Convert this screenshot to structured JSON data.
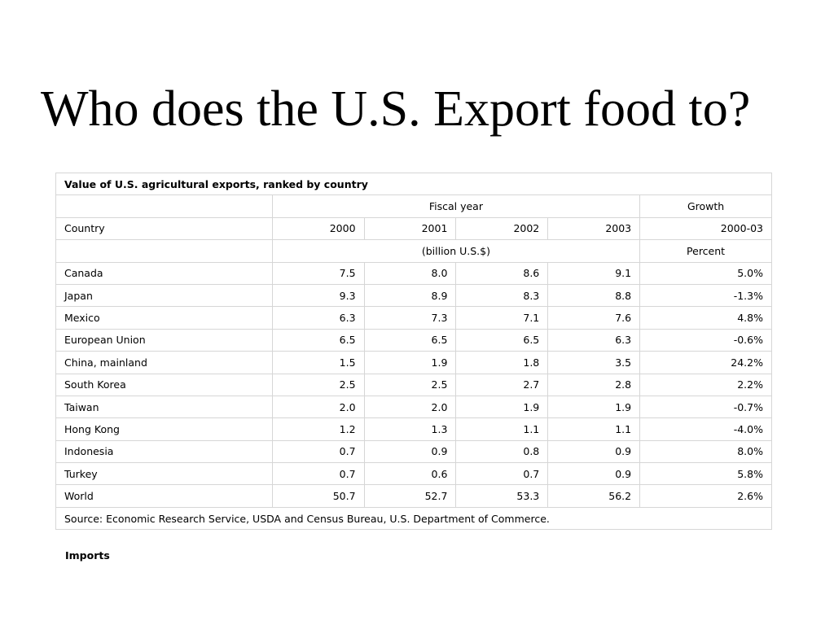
{
  "slide": {
    "title": "Who does the U.S. Export food to?"
  },
  "table": {
    "caption": "Value of U.S. agricultural exports, ranked by country",
    "group_headers": {
      "fiscal_year": "Fiscal year",
      "growth": "Growth"
    },
    "column_headers": {
      "country": "Country",
      "years": [
        "2000",
        "2001",
        "2002",
        "2003"
      ],
      "growth_period": "2000-03"
    },
    "units": {
      "values": "(billion U.S.$)",
      "growth": "Percent"
    },
    "rows": [
      {
        "country": "Canada",
        "values": [
          "7.5",
          "8.0",
          "8.6",
          "9.1"
        ],
        "growth": "5.0%"
      },
      {
        "country": "Japan",
        "values": [
          "9.3",
          "8.9",
          "8.3",
          "8.8"
        ],
        "growth": "-1.3%"
      },
      {
        "country": "Mexico",
        "values": [
          "6.3",
          "7.3",
          "7.1",
          "7.6"
        ],
        "growth": "4.8%"
      },
      {
        "country": "European Union",
        "values": [
          "6.5",
          "6.5",
          "6.5",
          "6.3"
        ],
        "growth": "-0.6%"
      },
      {
        "country": "China, mainland",
        "values": [
          "1.5",
          "1.9",
          "1.8",
          "3.5"
        ],
        "growth": "24.2%"
      },
      {
        "country": "South Korea",
        "values": [
          "2.5",
          "2.5",
          "2.7",
          "2.8"
        ],
        "growth": "2.2%"
      },
      {
        "country": "Taiwan",
        "values": [
          "2.0",
          "2.0",
          "1.9",
          "1.9"
        ],
        "growth": "-0.7%"
      },
      {
        "country": "Hong Kong",
        "values": [
          "1.2",
          "1.3",
          "1.1",
          "1.1"
        ],
        "growth": "-4.0%"
      },
      {
        "country": "Indonesia",
        "values": [
          "0.7",
          "0.9",
          "0.8",
          "0.9"
        ],
        "growth": "8.0%"
      },
      {
        "country": "Turkey",
        "values": [
          "0.7",
          "0.6",
          "0.7",
          "0.9"
        ],
        "growth": "5.8%"
      },
      {
        "country": "World",
        "values": [
          "50.7",
          "52.7",
          "53.3",
          "56.2"
        ],
        "growth": "2.6%"
      }
    ],
    "source": "Source: Economic Research Service, USDA and Census Bureau, U.S. Department of Commerce."
  },
  "footer": {
    "imports_label": "Imports"
  }
}
